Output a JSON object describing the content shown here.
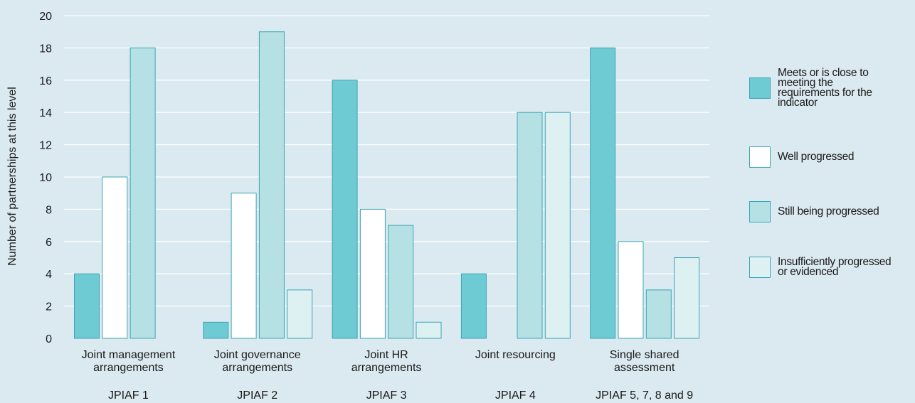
{
  "chart_data": {
    "type": "bar",
    "title": "",
    "ylabel": "Number of partnerships at this level",
    "ylim": [
      0,
      20
    ],
    "yticks": [
      0,
      2,
      4,
      6,
      8,
      10,
      12,
      14,
      16,
      18,
      20
    ],
    "grid": true,
    "legend_position": "right",
    "categories": [
      {
        "label": [
          "Joint management",
          "arrangements"
        ],
        "sublabel": "JPIAF 1"
      },
      {
        "label": [
          "Joint governance",
          "arrangements"
        ],
        "sublabel": "JPIAF 2"
      },
      {
        "label": [
          "Joint HR",
          "arrangements"
        ],
        "sublabel": "JPIAF 3"
      },
      {
        "label": [
          "Joint resourcing"
        ],
        "sublabel": "JPIAF 4"
      },
      {
        "label": [
          "Single shared",
          "assessment"
        ],
        "sublabel": "JPIAF 5, 7, 8 and 9"
      }
    ],
    "series": [
      {
        "name": "Meets or is close to meeting the requirements for the indicator",
        "color": "#6ecbd4",
        "values": [
          4,
          1,
          16,
          4,
          18
        ]
      },
      {
        "name": "Well progressed",
        "color": "#ffffff",
        "values": [
          10,
          9,
          8,
          0,
          6
        ]
      },
      {
        "name": "Still being progressed",
        "color": "#b6e1e4",
        "values": [
          18,
          19,
          7,
          14,
          3
        ]
      },
      {
        "name": "Insufficiently progressed or evidenced",
        "color": "#def1f2",
        "values": [
          0,
          3,
          1,
          14,
          5
        ]
      }
    ],
    "bar_stroke": "#3aa6b4",
    "grid_color": "#ffffff",
    "background": "#dbe9f0"
  },
  "legend": {
    "items": [
      {
        "lines": [
          "Meets or is close to",
          "meeting the",
          "requirements for the",
          "indicator"
        ],
        "color": "#6ecbd4"
      },
      {
        "lines": [
          "Well progressed"
        ],
        "color": "#ffffff"
      },
      {
        "lines": [
          "Still being progressed"
        ],
        "color": "#b6e1e4"
      },
      {
        "lines": [
          "Insufficiently progressed",
          "or evidenced"
        ],
        "color": "#def1f2"
      }
    ]
  }
}
